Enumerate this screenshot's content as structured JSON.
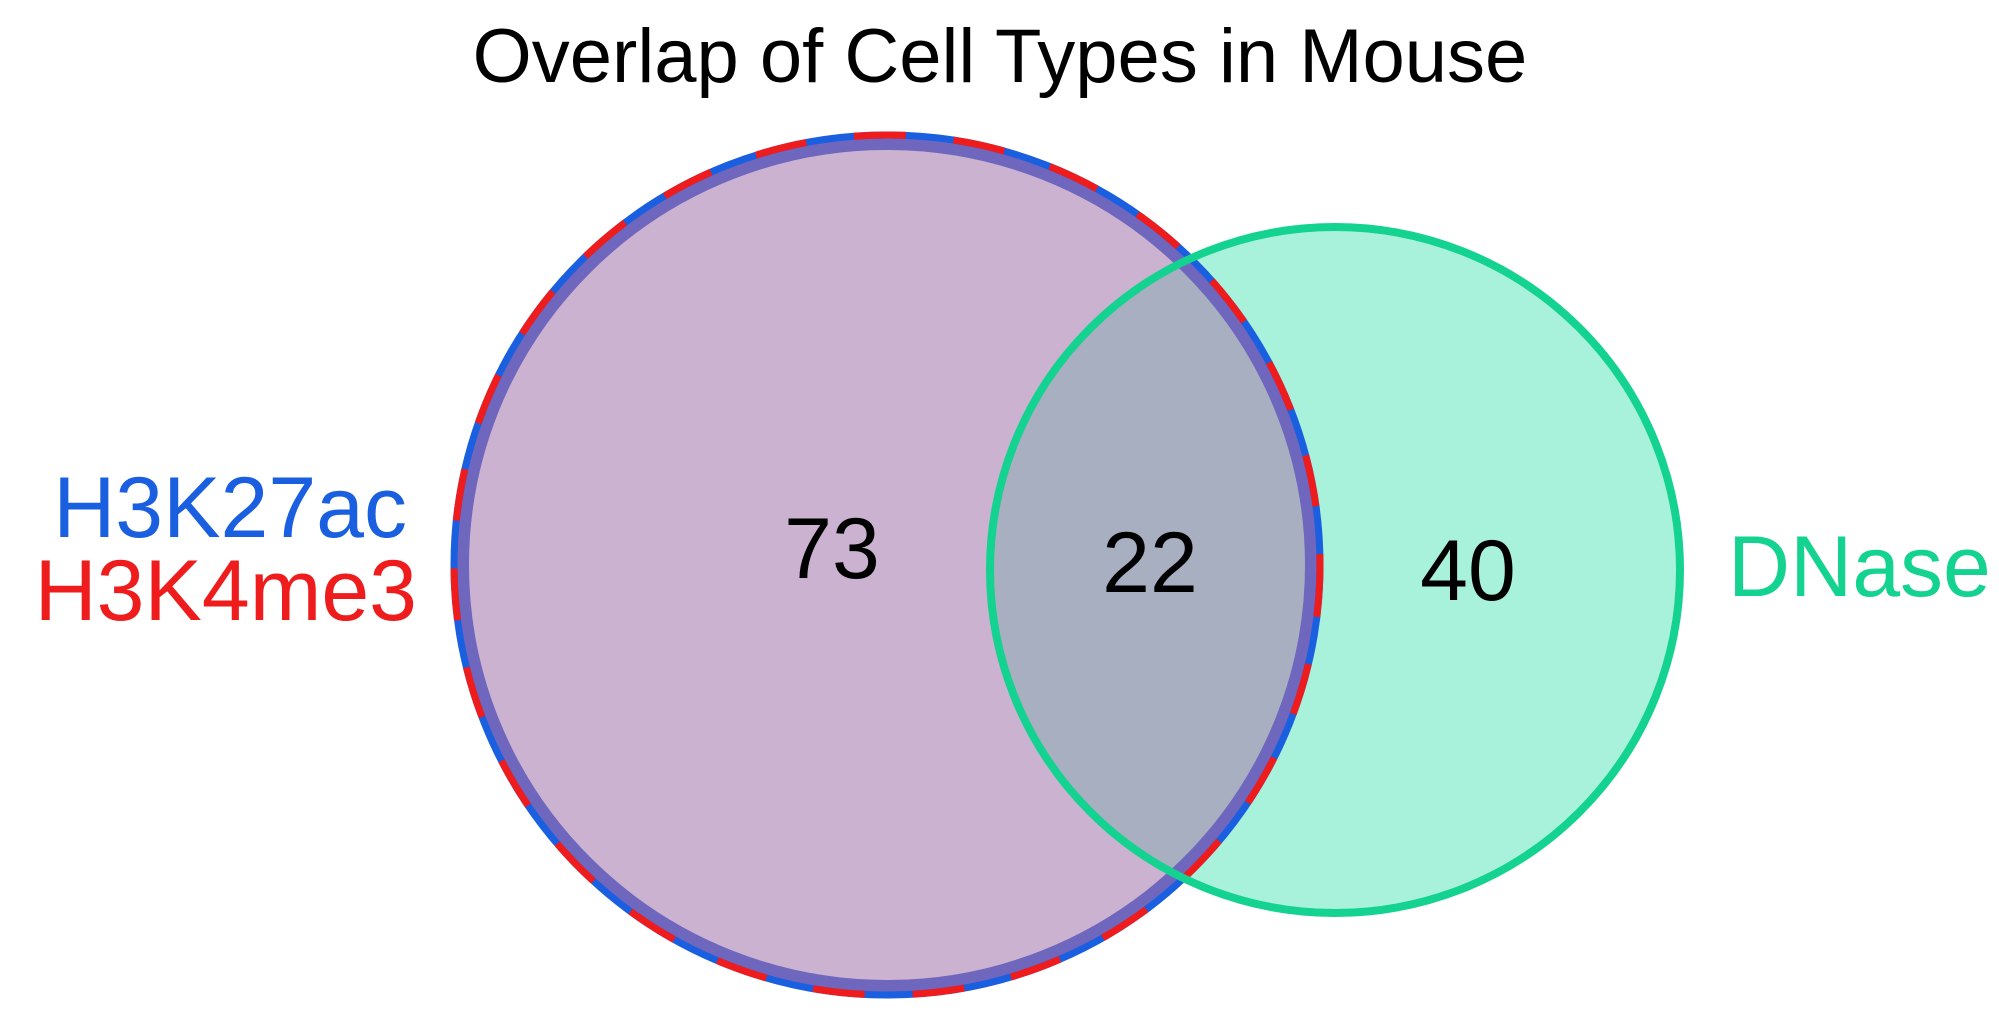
{
  "title": "Overlap of Cell Types in Mouse",
  "sets": {
    "left": {
      "labels": [
        {
          "text": "H3K27ac",
          "color": "#1a5fe0"
        },
        {
          "text": "H3K4me3",
          "color": "#ee1c1c"
        }
      ],
      "fill_color": "#cab2d0",
      "outline_colors": [
        "#1a5fe0",
        "#ee1c1c"
      ]
    },
    "right": {
      "label": "DNase",
      "label_color": "#14d28f",
      "fill_color": "#a8f2dc",
      "outline_color": "#14d28f"
    },
    "overlap_fill_color": "#a8afc1"
  },
  "counts": {
    "left_only": "73",
    "intersection": "22",
    "right_only": "40"
  }
}
